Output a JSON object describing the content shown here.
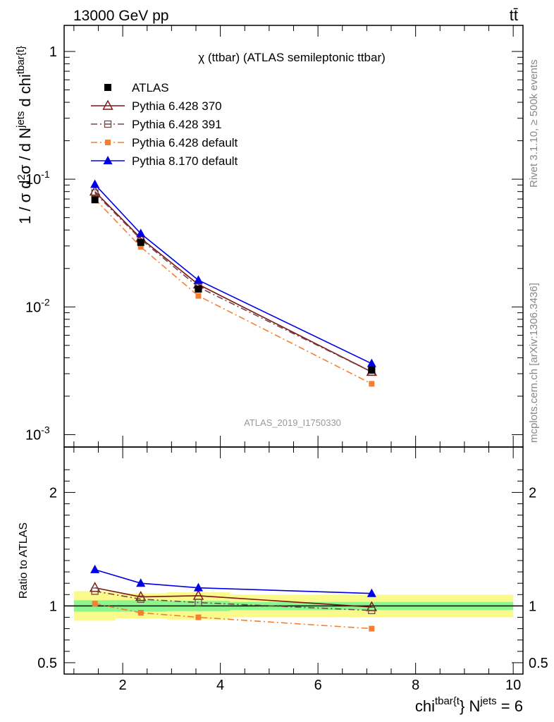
{
  "header": {
    "left_label": "13000 GeV pp",
    "right_label": "tt̄"
  },
  "side_labels": {
    "rivet": "Rivet 3.1.10, ≥ 500k events",
    "mcplots": "mcplots.cern.ch [arXiv:1306.3436]"
  },
  "chart_data": [
    {
      "type": "line",
      "title": "χ (ttbar) (ATLAS semileptonic ttbar)",
      "watermark": "ATLAS_2019_I1750330",
      "ylabel": "1 / σ d²σ / d N^jets d chi^tbar{t}",
      "yscale": "log",
      "ylim": [
        0.0008,
        1.6
      ],
      "xlim": [
        0.8,
        10.2
      ],
      "y_ticklabels": [
        {
          "value": 1,
          "label": "1"
        },
        {
          "value": 0.1,
          "label": "10⁻¹"
        },
        {
          "value": 0.01,
          "label": "10⁻²"
        },
        {
          "value": 0.001,
          "label": "10⁻³"
        }
      ],
      "x": [
        1.43,
        2.37,
        3.55,
        7.1
      ],
      "series": [
        {
          "name": "ATLAS",
          "color": "#000000",
          "marker": "filled-square",
          "line": "none",
          "values": [
            0.069,
            0.032,
            0.0138,
            0.0032
          ]
        },
        {
          "name": "Pythia 6.428 370",
          "color": "#7f1414",
          "marker": "open-triangle",
          "line": "solid",
          "values": [
            0.08,
            0.0345,
            0.015,
            0.0031
          ]
        },
        {
          "name": "Pythia 6.428 391",
          "color": "#6e4a4a",
          "marker": "open-square",
          "line": "dashdot",
          "values": [
            0.078,
            0.0338,
            0.0143,
            0.0031
          ]
        },
        {
          "name": "Pythia 6.428 default",
          "color": "#f57f30",
          "marker": "filled-square-small",
          "line": "dashdot",
          "values": [
            0.07,
            0.0295,
            0.0122,
            0.0025
          ]
        },
        {
          "name": "Pythia 8.170 default",
          "color": "#0000e6",
          "marker": "filled-triangle",
          "line": "solid",
          "values": [
            0.091,
            0.0375,
            0.0162,
            0.0036
          ]
        }
      ]
    },
    {
      "type": "line",
      "ylabel": "Ratio to ATLAS",
      "xlabel": "chi^tbar{t} N^jets = 6",
      "ylim": [
        0.4,
        2.4
      ],
      "xlim": [
        0.8,
        10.2
      ],
      "y_ticklabels": [
        "0.5",
        "1",
        "2"
      ],
      "x_ticklabels": [
        "2",
        "4",
        "6",
        "8",
        "10"
      ],
      "bands": {
        "x_edges": [
          1.0,
          1.85,
          2.9,
          4.2,
          10.0
        ],
        "stat_half_width": [
          0.05,
          0.05,
          0.045,
          0.035
        ],
        "total_half_width": [
          0.13,
          0.11,
          0.12,
          0.1
        ],
        "stat_color": "#8cf58c",
        "total_color": "#fafa8c"
      },
      "x": [
        1.43,
        2.37,
        3.55,
        7.1
      ],
      "series": [
        {
          "name": "Pythia 6.428 370",
          "values": [
            1.16,
            1.08,
            1.09,
            0.99
          ]
        },
        {
          "name": "Pythia 6.428 391",
          "values": [
            1.13,
            1.06,
            1.03,
            0.96
          ]
        },
        {
          "name": "Pythia 6.428 default",
          "values": [
            1.02,
            0.94,
            0.9,
            0.8
          ]
        },
        {
          "name": "Pythia 8.170 default",
          "values": [
            1.32,
            1.2,
            1.16,
            1.11
          ]
        }
      ]
    }
  ]
}
